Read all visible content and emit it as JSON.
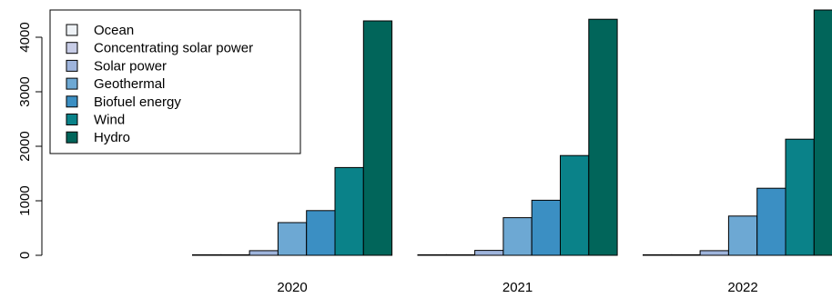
{
  "chart_data": {
    "type": "bar",
    "grouped": true,
    "categories": [
      "2020",
      "2021",
      "2022"
    ],
    "series": [
      {
        "name": "Ocean",
        "color": "#eef2f6",
        "values": [
          1,
          1,
          1
        ]
      },
      {
        "name": "Concentrating solar power",
        "color": "#c7cce6",
        "values": [
          6,
          6,
          6
        ]
      },
      {
        "name": "Solar power",
        "color": "#9eb4dc",
        "values": [
          85,
          90,
          85
        ]
      },
      {
        "name": "Geothermal",
        "color": "#6da8d3",
        "values": [
          600,
          690,
          720
        ]
      },
      {
        "name": "Biofuel energy",
        "color": "#3b8fc3",
        "values": [
          820,
          1010,
          1230
        ]
      },
      {
        "name": "Wind",
        "color": "#0a8289",
        "values": [
          1610,
          1830,
          2130
        ]
      },
      {
        "name": "Hydro",
        "color": "#01655a",
        "values": [
          4300,
          4330,
          4500
        ]
      }
    ],
    "yticks": [
      0,
      1000,
      2000,
      3000,
      4000
    ],
    "ylim": [
      0,
      4500
    ],
    "legend_position": "top-left",
    "grid": false,
    "title": "",
    "xlabel": "",
    "ylabel": ""
  }
}
